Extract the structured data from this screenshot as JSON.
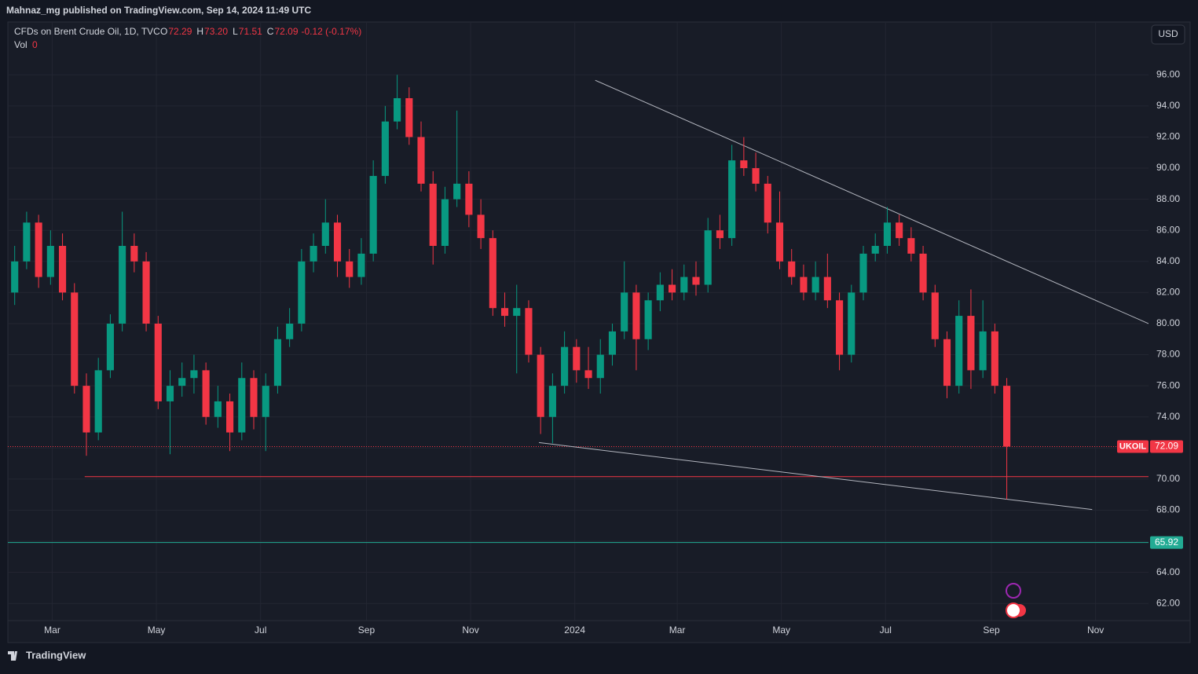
{
  "header": {
    "published": "Mahnaz_mg published on TradingView.com, Sep 14, 2024 11:49 UTC",
    "symbol": "CFDs on Brent Crude Oil, 1D, TVC",
    "ohlc": [
      {
        "key": "O",
        "value": "72.29"
      },
      {
        "key": "H",
        "value": "73.20"
      },
      {
        "key": "L",
        "value": "71.51"
      },
      {
        "key": "C",
        "value": "72.09"
      }
    ],
    "change": "-0.12 (-0.17%)",
    "volume_key": "Vol",
    "volume": "0",
    "currency": "USD",
    "brand": "TradingView"
  },
  "chart_data": {
    "type": "candlestick",
    "up_color": "#089981",
    "down_color": "#f23645",
    "grid": true,
    "xlim": [
      33,
      701
    ],
    "ylim": [
      60.9,
      99.4
    ],
    "xticks": [
      {
        "value": 59,
        "label": "Mar"
      },
      {
        "value": 120,
        "label": "May"
      },
      {
        "value": 181,
        "label": "Jul"
      },
      {
        "value": 243,
        "label": "Sep"
      },
      {
        "value": 304,
        "label": "Nov"
      },
      {
        "value": 365,
        "label": "2024"
      },
      {
        "value": 425,
        "label": "Mar"
      },
      {
        "value": 486,
        "label": "May"
      },
      {
        "value": 547,
        "label": "Jul"
      },
      {
        "value": 609,
        "label": "Sep"
      },
      {
        "value": 670,
        "label": "Nov"
      }
    ],
    "yticks": [
      {
        "value": 62,
        "label": "62.00"
      },
      {
        "value": 64,
        "label": "64.00"
      },
      {
        "value": 66,
        "label": "66.00"
      },
      {
        "value": 68,
        "label": "68.00"
      },
      {
        "value": 70,
        "label": "70.00"
      },
      {
        "value": 72,
        "label": "72.00"
      },
      {
        "value": 74,
        "label": "74.00"
      },
      {
        "value": 76,
        "label": "76.00"
      },
      {
        "value": 78,
        "label": "78.00"
      },
      {
        "value": 80,
        "label": "80.00"
      },
      {
        "value": 82,
        "label": "82.00"
      },
      {
        "value": 84,
        "label": "84.00"
      },
      {
        "value": 86,
        "label": "86.00"
      },
      {
        "value": 88,
        "label": "88.00"
      },
      {
        "value": 90,
        "label": "90.00"
      },
      {
        "value": 92,
        "label": "92.00"
      },
      {
        "value": 94,
        "label": "94.00"
      },
      {
        "value": 96,
        "label": "96.00"
      }
    ],
    "x": [
      37,
      44,
      51,
      58,
      65,
      72,
      79,
      86,
      93,
      100,
      107,
      114,
      121,
      128,
      135,
      142,
      149,
      156,
      163,
      170,
      177,
      184,
      191,
      198,
      205,
      212,
      219,
      226,
      233,
      240,
      247,
      254,
      261,
      268,
      275,
      282,
      289,
      296,
      303,
      310,
      317,
      324,
      331,
      338,
      345,
      352,
      359,
      366,
      373,
      380,
      387,
      394,
      401,
      408,
      415,
      422,
      429,
      436,
      443,
      450,
      457,
      464,
      471,
      478,
      485,
      492,
      499,
      506,
      513,
      520,
      527,
      534,
      541,
      548,
      555,
      562,
      569,
      576,
      583,
      590,
      597,
      604,
      611,
      618
    ],
    "open": [
      82,
      84,
      86.5,
      83,
      85,
      82,
      76,
      73,
      77,
      80,
      85,
      84,
      80,
      75,
      76,
      76.5,
      77,
      74,
      75,
      73,
      76.5,
      74,
      76,
      79,
      80,
      84,
      85,
      86.5,
      84,
      83,
      84.5,
      89.5,
      93,
      94.5,
      92,
      89,
      85,
      88,
      89,
      87,
      85.5,
      81,
      80.5,
      81,
      78,
      74,
      76,
      78.5,
      77,
      76.5,
      78,
      79.5,
      82,
      79,
      81.5,
      82.5,
      82,
      83,
      82.5,
      86,
      85.5,
      90.5,
      90,
      89,
      86.5,
      84,
      83,
      82,
      83,
      81.5,
      78,
      82,
      84.5,
      85,
      86.5,
      85.5,
      84.5,
      82,
      79,
      76,
      80.5,
      77,
      79.5,
      76
    ],
    "high": [
      85,
      87.2,
      87,
      86,
      85.8,
      82.6,
      76.8,
      77.8,
      80.6,
      87.2,
      85.8,
      84.6,
      80.5,
      77,
      77.5,
      78,
      77.5,
      76,
      75.5,
      77.5,
      77,
      76.8,
      79.8,
      81,
      84.8,
      85.8,
      88,
      87,
      84.8,
      85.5,
      90.5,
      94,
      96,
      95.2,
      93,
      89.8,
      88.8,
      93.7,
      89.8,
      88,
      86,
      82,
      82.5,
      81.5,
      78.5,
      76.8,
      79.5,
      79,
      78.5,
      79,
      80,
      84,
      82.5,
      82,
      83.3,
      83.5,
      83.8,
      84,
      86.8,
      87,
      91.5,
      92,
      91,
      89.5,
      88.5,
      84.8,
      83.8,
      84,
      84.5,
      82,
      82.5,
      85,
      85.8,
      87.5,
      87,
      86.2,
      85,
      82.5,
      79.5,
      81.5,
      82.2,
      81.5,
      80,
      76.5
    ],
    "low": [
      81.2,
      83.5,
      82.3,
      82.5,
      81.5,
      75.5,
      71.5,
      72.5,
      76.5,
      79.5,
      83.3,
      79.5,
      74.5,
      71.6,
      75.3,
      75.5,
      73.5,
      73.3,
      71.8,
      72.5,
      73.2,
      71.8,
      75.5,
      78.5,
      79.5,
      83.3,
      84.5,
      83,
      82.3,
      82.5,
      84,
      89,
      92.5,
      91.5,
      88.5,
      83.8,
      84.5,
      87.5,
      86.2,
      84.8,
      80.5,
      79.8,
      76.8,
      77.5,
      72.9,
      72.3,
      75.5,
      76.2,
      75.8,
      75.5,
      77.3,
      79,
      77,
      78.3,
      80.8,
      81.5,
      81.5,
      81.8,
      82,
      84.8,
      85,
      89.5,
      88.5,
      85.8,
      83.5,
      82.5,
      81.5,
      81.5,
      81,
      77,
      77.5,
      81.5,
      84,
      84.5,
      85,
      84,
      81.5,
      78.5,
      75.2,
      75.5,
      75.8,
      76.5,
      75.5,
      68.7
    ],
    "close": [
      84,
      86.5,
      83,
      85,
      82,
      76,
      73,
      77,
      80,
      85,
      84,
      80,
      75,
      76,
      76.5,
      77,
      74,
      75,
      73,
      76.5,
      74,
      76,
      79,
      80,
      84,
      85,
      86.5,
      84,
      83,
      84.5,
      89.5,
      93,
      94.5,
      92,
      89,
      85,
      88,
      89,
      87,
      85.5,
      81,
      80.5,
      81,
      78,
      74,
      76,
      78.5,
      77,
      76.5,
      78,
      79.5,
      82,
      79,
      81.5,
      82.5,
      82,
      83,
      82.5,
      86,
      85.5,
      90.5,
      90,
      89,
      86.5,
      84,
      83,
      82,
      83,
      81.5,
      78,
      82,
      84.5,
      85,
      86.5,
      85.5,
      84.5,
      82,
      79,
      76,
      80.5,
      77,
      79.5,
      76,
      72.09
    ],
    "last_price": {
      "symbol": "UKOIL",
      "value": 72.09,
      "label": "72.09",
      "color": "#f23645"
    },
    "horizontal_lines": [
      {
        "value": 65.92,
        "label": "65.92",
        "color": "#22ab94"
      },
      {
        "value": 70.16,
        "start": 78,
        "color": "#f23645"
      }
    ],
    "trendlines": [
      {
        "x": [
          377,
          701
        ],
        "y": [
          95.65,
          80.0
        ],
        "color": "#b2b5be"
      },
      {
        "x": [
          344,
          668
        ],
        "y": [
          72.35,
          68.04
        ],
        "color": "#b2b5be"
      }
    ]
  }
}
